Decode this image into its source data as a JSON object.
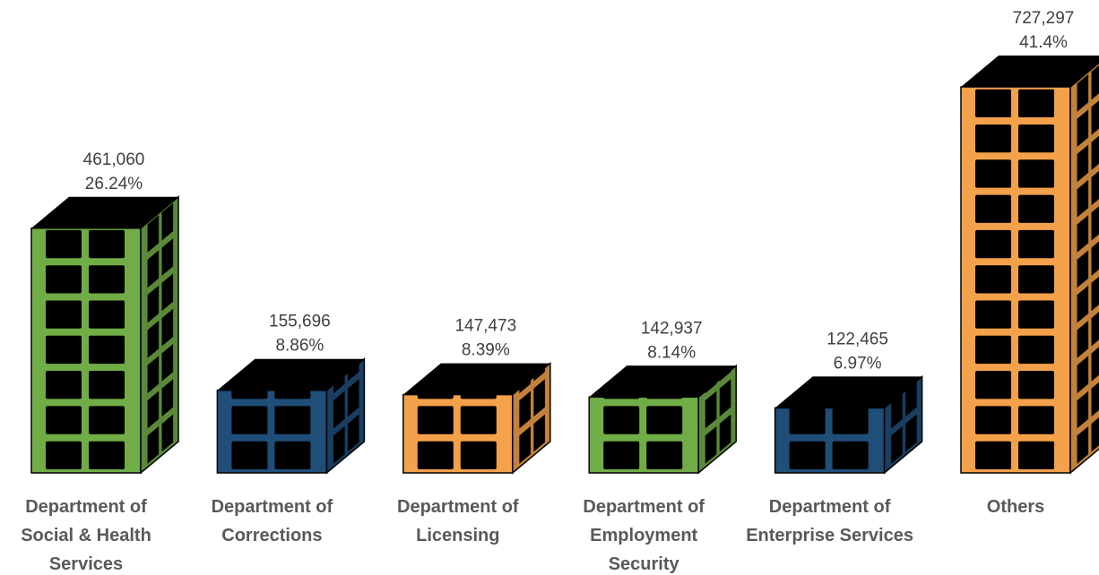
{
  "chart_data": {
    "type": "pictograph-bar",
    "categories": [
      "Department of Social & Health Services",
      "Department of Corrections",
      "Department of Licensing",
      "Department of Employment Security",
      "Department of Enterprise Services",
      "Others"
    ],
    "values": [
      461060,
      155696,
      147473,
      142937,
      122465,
      727297
    ],
    "value_labels": [
      "461,060",
      "155,696",
      "147,473",
      "142,937",
      "122,465",
      "727,297"
    ],
    "share_labels": [
      "26.24%",
      "8.86%",
      "8.39%",
      "8.14%",
      "6.97%",
      "41.4%"
    ],
    "colors": [
      "#70ad47",
      "#1f4e79",
      "#f4a14b",
      "#70ad47",
      "#1f4e79",
      "#f4a14b"
    ]
  }
}
